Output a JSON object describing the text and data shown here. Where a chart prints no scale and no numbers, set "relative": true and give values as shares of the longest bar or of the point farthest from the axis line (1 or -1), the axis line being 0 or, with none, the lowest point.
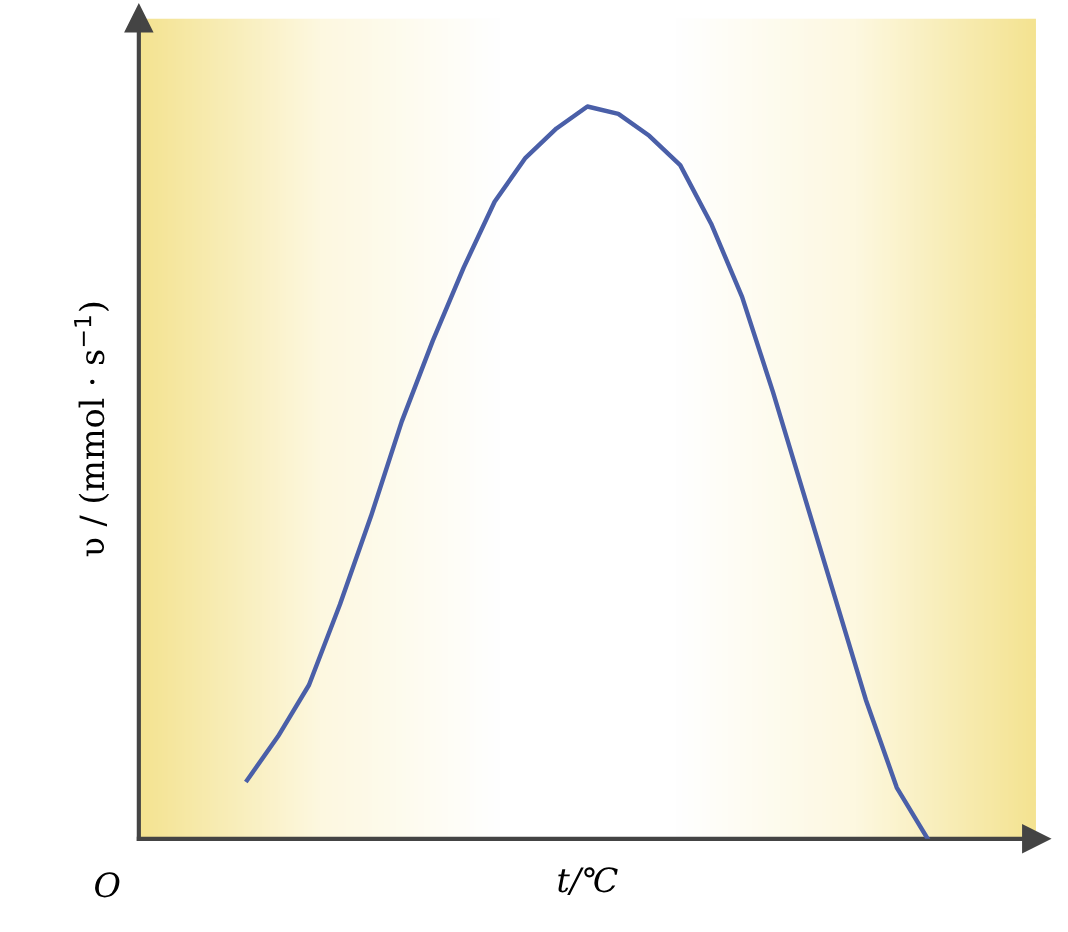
{
  "chart_data": {
    "type": "line",
    "relative": true,
    "xlabel": "t/℃",
    "ylabel": "υ / (mmol · s$^{−1}$)",
    "annotations": [
      "O"
    ],
    "categories": [
      null,
      null,
      null,
      null,
      null,
      null,
      null,
      null,
      null,
      null,
      null,
      null,
      null,
      null,
      null,
      null,
      null,
      null,
      null,
      null,
      null,
      null,
      null
    ],
    "series": [
      {
        "color": "#4a5fa8",
        "values": [
          0.08,
          0.14,
          0.21,
          0.32,
          0.44,
          0.57,
          0.68,
          0.78,
          0.87,
          0.93,
          0.97,
          1.0,
          0.99,
          0.96,
          0.92,
          0.84,
          0.74,
          0.61,
          0.47,
          0.33,
          0.19,
          0.07,
          0.0
        ]
      }
    ],
    "marker": "none",
    "line_style": "solid"
  }
}
